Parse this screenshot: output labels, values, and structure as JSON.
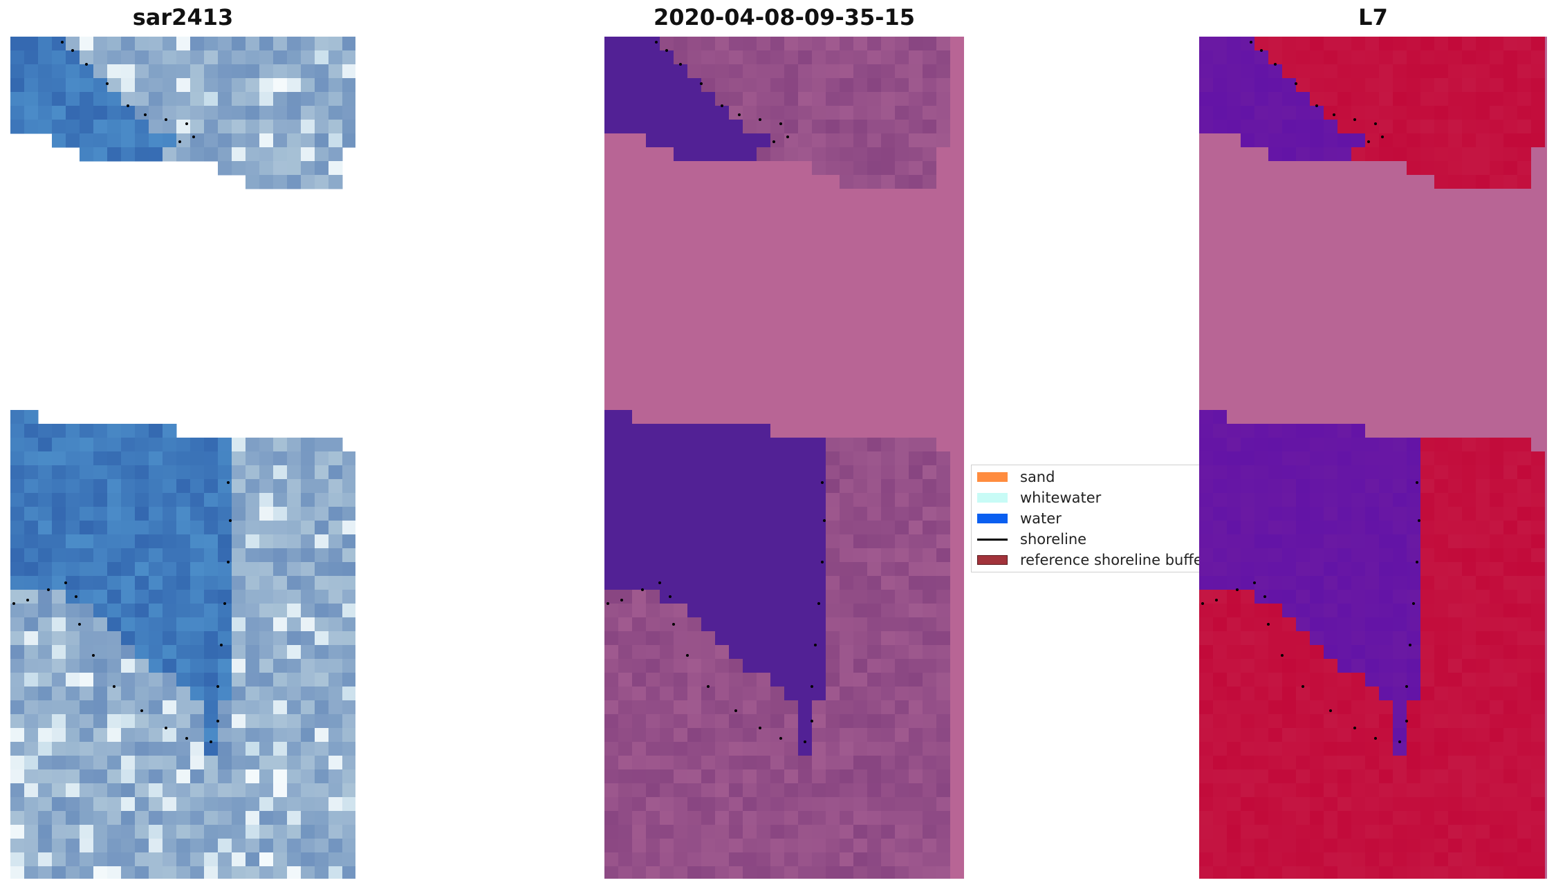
{
  "panels": [
    {
      "title": "sar2413",
      "style": "rgb"
    },
    {
      "title": "2020-04-08-09-35-15",
      "style": "index"
    },
    {
      "title": "L7",
      "style": "classify"
    }
  ],
  "legend": {
    "items": [
      {
        "label": "sand",
        "color": "#ff8c3f",
        "kind": "patch"
      },
      {
        "label": "whitewater",
        "color": "#c8fbf6",
        "kind": "patch"
      },
      {
        "label": "water",
        "color": "#0a5ff0",
        "kind": "patch"
      },
      {
        "label": "shoreline",
        "color": "#000000",
        "kind": "line"
      },
      {
        "label": "reference shoreline buffer",
        "color": "#a2333b",
        "kind": "patch"
      }
    ]
  },
  "colors": {
    "nodata_fill": "#b86595",
    "water_index": "#522195",
    "land_index": "#a05a8f",
    "water_class": "#6a19a3",
    "land_class": "#c20a3a"
  }
}
